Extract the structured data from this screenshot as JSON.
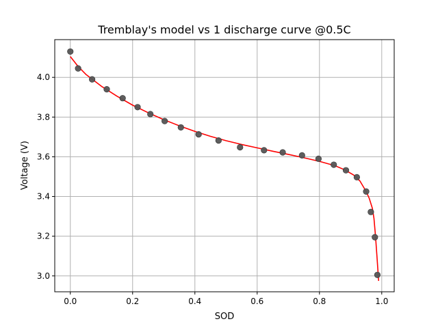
{
  "chart_data": {
    "type": "scatter",
    "title": "Tremblay's model vs 1 discharge curve @0.5C",
    "xlabel": "SOD",
    "ylabel": "Voltage (V)",
    "xlim": [
      -0.05,
      1.04
    ],
    "ylim": [
      2.92,
      4.19
    ],
    "xticks": [
      "0.0",
      "0.2",
      "0.4",
      "0.6",
      "0.8",
      "1.0"
    ],
    "yticks": [
      "3.0",
      "3.2",
      "3.4",
      "3.6",
      "3.8",
      "4.0"
    ],
    "grid": true,
    "legend": "none",
    "series": [
      {
        "kind": "scatter",
        "color": "#555555",
        "x": [
          0.0,
          0.025,
          0.07,
          0.117,
          0.168,
          0.216,
          0.257,
          0.303,
          0.355,
          0.412,
          0.476,
          0.545,
          0.622,
          0.682,
          0.744,
          0.797,
          0.846,
          0.885,
          0.92,
          0.95,
          0.965,
          0.978,
          0.986
        ],
        "y": [
          4.13,
          4.045,
          3.99,
          3.94,
          3.895,
          3.85,
          3.815,
          3.78,
          3.748,
          3.713,
          3.682,
          3.648,
          3.633,
          3.622,
          3.607,
          3.59,
          3.56,
          3.532,
          3.497,
          3.425,
          3.322,
          3.195,
          3.005
        ]
      },
      {
        "kind": "line",
        "color": "#ff0000",
        "x": [
          0.0,
          0.025,
          0.05,
          0.1,
          0.15,
          0.2,
          0.25,
          0.3,
          0.35,
          0.4,
          0.45,
          0.5,
          0.55,
          0.6,
          0.65,
          0.7,
          0.75,
          0.8,
          0.85,
          0.88,
          0.91,
          0.93,
          0.95,
          0.96,
          0.97,
          0.975,
          0.98,
          0.985,
          0.99
        ],
        "y": [
          4.105,
          4.055,
          4.015,
          3.955,
          3.905,
          3.86,
          3.822,
          3.787,
          3.756,
          3.728,
          3.703,
          3.681,
          3.662,
          3.645,
          3.628,
          3.612,
          3.595,
          3.577,
          3.555,
          3.535,
          3.508,
          3.478,
          3.425,
          3.39,
          3.34,
          3.29,
          3.2,
          3.09,
          2.975
        ]
      }
    ]
  }
}
